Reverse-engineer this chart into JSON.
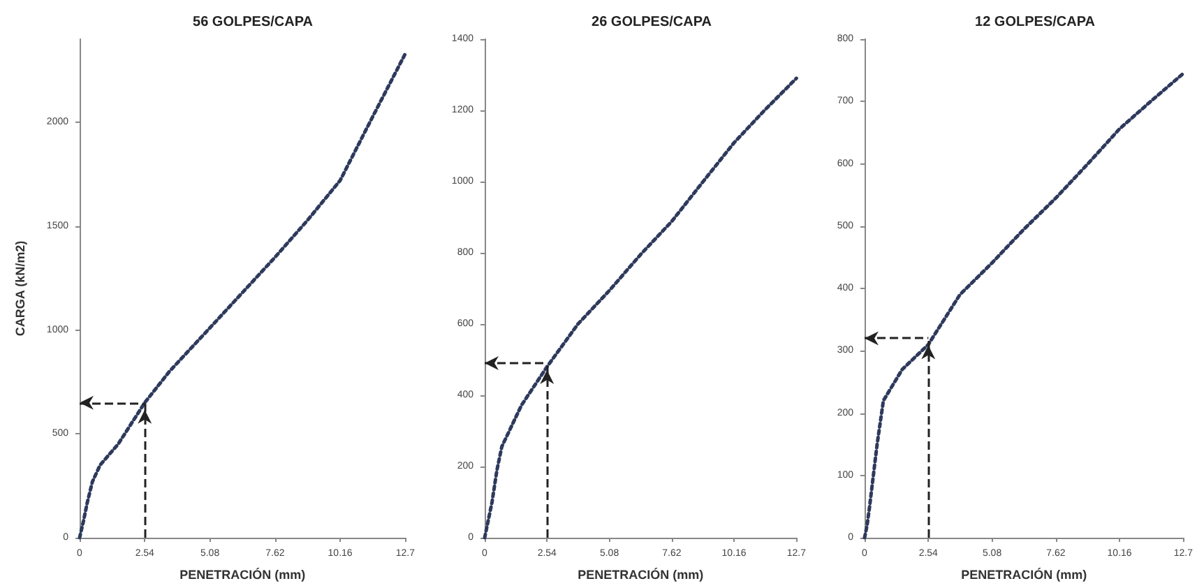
{
  "chart_data": [
    {
      "type": "line",
      "title": "56 GOLPES/CAPA",
      "xlabel": "PENETRACIÓN (mm)",
      "ylabel": "CARGA (kN/m2)",
      "series": [
        {
          "color": "#2e3a5c",
          "x": [
            0,
            0.15,
            0.3,
            0.5,
            0.8,
            1.5,
            2.54,
            3.5,
            5.08,
            6.35,
            7.62,
            8.9,
            10.16,
            11.4,
            12.7
          ],
          "values": [
            0,
            80,
            170,
            270,
            350,
            450,
            650,
            800,
            1010,
            1180,
            1350,
            1530,
            1720,
            2020,
            2330
          ]
        }
      ],
      "xlim": [
        0,
        12.7
      ],
      "xticks": [
        0,
        2.54,
        5.08,
        7.62,
        10.16,
        12.7
      ],
      "ylim": [
        0,
        2400
      ],
      "yticks": [
        0,
        500,
        1000,
        1500,
        2000
      ],
      "ref_lines": [
        {
          "axis": "x",
          "value": 2.54,
          "color": "#222222",
          "line_style": "dashed"
        },
        {
          "axis": "y",
          "value": 650,
          "color": "#222222",
          "line_style": "dashed"
        }
      ],
      "marker": "none",
      "line_style": "dotted",
      "grid": false
    },
    {
      "type": "line",
      "title": "26 GOLPES/CAPA",
      "xlabel": "PENETRACIÓN (mm)",
      "series": [
        {
          "color": "#2e3a5c",
          "x": [
            0,
            0.15,
            0.3,
            0.5,
            0.7,
            1.5,
            2.54,
            3.8,
            5.08,
            6.35,
            7.62,
            8.9,
            10.16,
            11.4,
            12.7
          ],
          "values": [
            0,
            50,
            100,
            190,
            256,
            372,
            480,
            600,
            694,
            795,
            888,
            1000,
            1109,
            1200,
            1290
          ]
        }
      ],
      "xlim": [
        0,
        12.7
      ],
      "xticks": [
        0,
        2.54,
        5.08,
        7.62,
        10.16,
        12.7
      ],
      "ylim": [
        0,
        1400
      ],
      "yticks": [
        0,
        200,
        400,
        600,
        800,
        1000,
        1200,
        1400
      ],
      "ref_lines": [
        {
          "axis": "x",
          "value": 2.54,
          "color": "#222222",
          "line_style": "dashed"
        },
        {
          "axis": "y",
          "value": 490,
          "color": "#222222",
          "line_style": "dashed"
        }
      ],
      "marker": "none",
      "line_style": "dotted",
      "grid": false
    },
    {
      "type": "line",
      "title": "12 GOLPES/CAPA",
      "xlabel": "PENETRACIÓN (mm)",
      "series": [
        {
          "color": "#2e3a5c",
          "x": [
            0,
            0.1,
            0.2,
            0.35,
            0.5,
            0.75,
            1.5,
            2.54,
            3.8,
            5.08,
            6.35,
            7.62,
            8.9,
            10.16,
            11.4,
            12.7
          ],
          "values": [
            0,
            20,
            50,
            100,
            150,
            220,
            270,
            310,
            390,
            441,
            495,
            545,
            600,
            656,
            700,
            745
          ]
        }
      ],
      "xlim": [
        0,
        12.7
      ],
      "xticks": [
        0,
        2.54,
        5.08,
        7.62,
        10.16,
        12.7
      ],
      "ylim": [
        0,
        800
      ],
      "yticks": [
        0,
        100,
        200,
        300,
        400,
        500,
        600,
        700,
        800
      ],
      "ref_lines": [
        {
          "axis": "x",
          "value": 2.54,
          "color": "#222222",
          "line_style": "dashed"
        },
        {
          "axis": "y",
          "value": 320,
          "color": "#222222",
          "line_style": "dashed"
        }
      ],
      "marker": "none",
      "line_style": "dotted",
      "grid": false
    }
  ]
}
